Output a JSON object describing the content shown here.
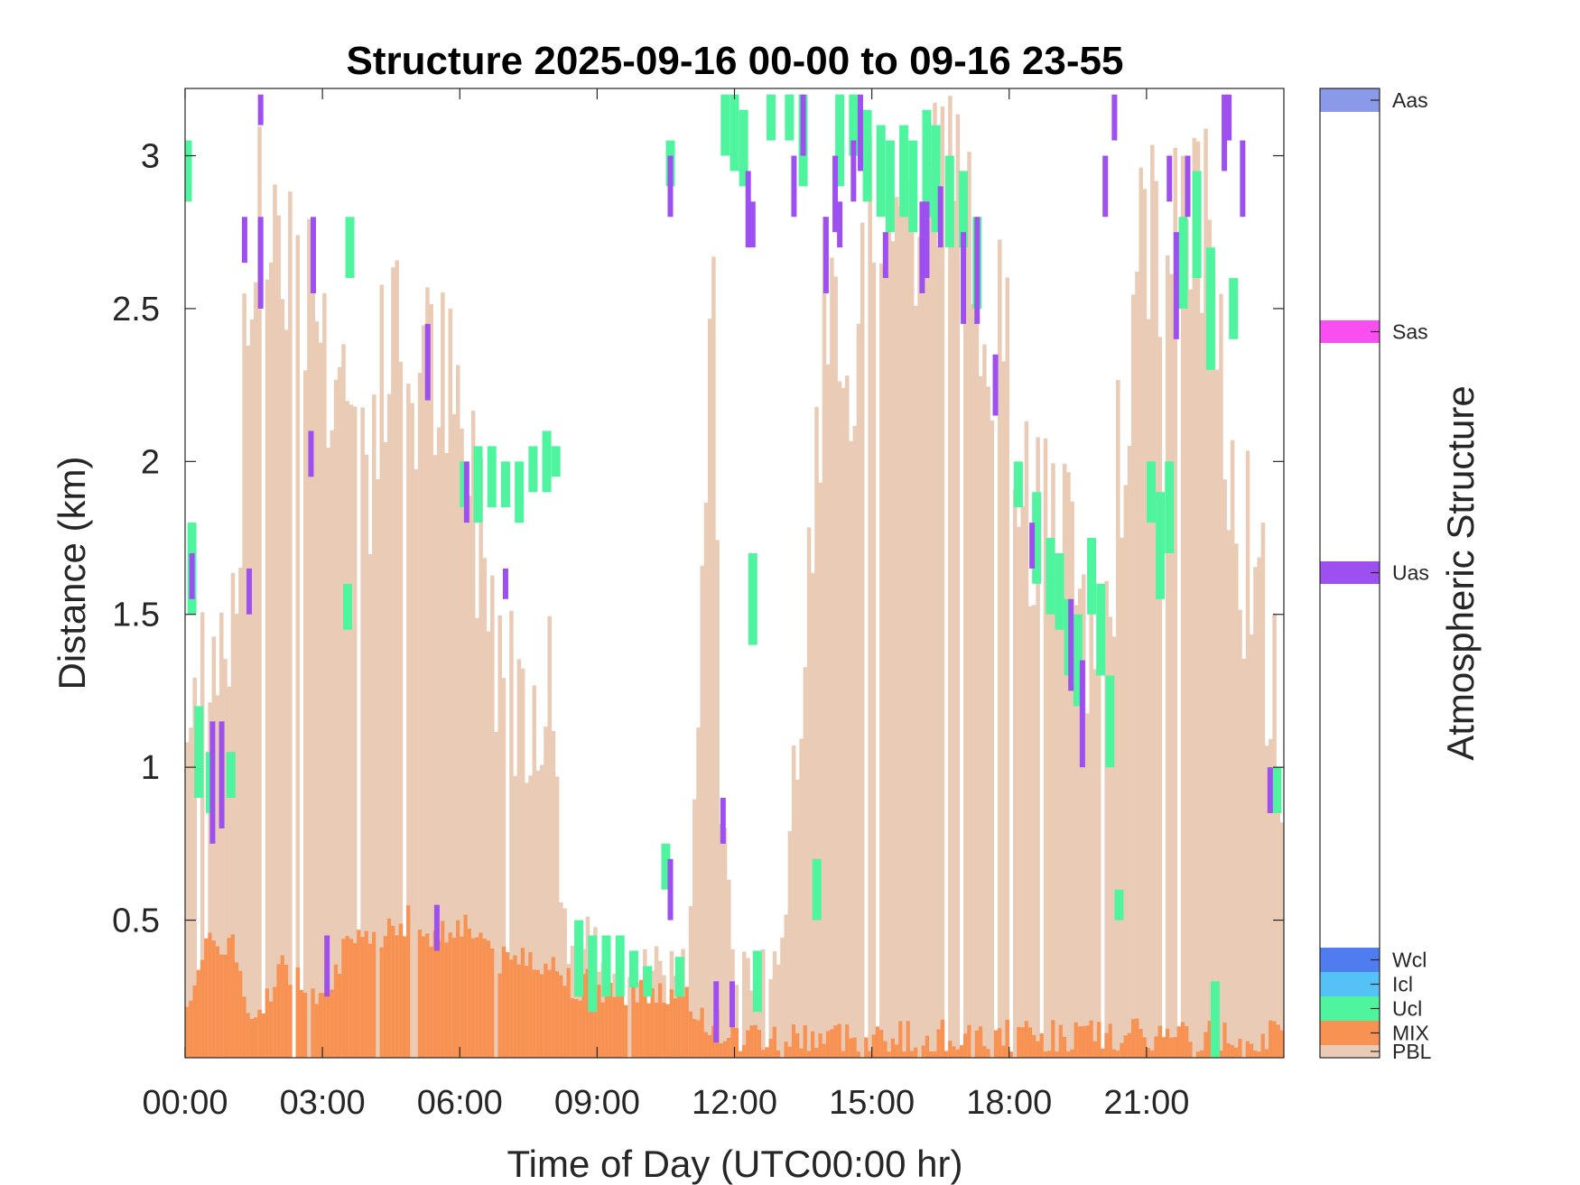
{
  "chart_data": {
    "type": "heatmap",
    "title": "Structure 2025-09-16 00-00 to 09-16 23-55",
    "xlabel": "Time of Day (UTC00:00 hr)",
    "ylabel": "Distance (km)",
    "colorbar_label": "Atmospheric Structure",
    "xlim": [
      0,
      24
    ],
    "ylim": [
      0.05,
      3.22
    ],
    "x_ticks": [
      0,
      3,
      6,
      9,
      12,
      15,
      18,
      21
    ],
    "x_tick_labels": [
      "00:00",
      "03:00",
      "06:00",
      "09:00",
      "12:00",
      "15:00",
      "18:00",
      "21:00"
    ],
    "y_ticks": [
      0.5,
      1,
      1.5,
      2,
      2.5,
      3
    ],
    "y_tick_labels": [
      "0.5",
      "1",
      "1.5",
      "2",
      "2.5",
      "3"
    ],
    "grid": false,
    "categories": [
      {
        "code": "PBL",
        "color": "#EACBB5"
      },
      {
        "code": "MIX",
        "color": "#F89253"
      },
      {
        "code": "Ucl",
        "color": "#4EF59E"
      },
      {
        "code": "Icl",
        "color": "#55C2F7"
      },
      {
        "code": "Wcl",
        "color": "#4F7DF0"
      },
      {
        "code": "Uas",
        "color": "#9D4FF0"
      },
      {
        "code": "Sas",
        "color": "#F94EF0"
      },
      {
        "code": "Aas",
        "color": "#8A9AE8"
      }
    ],
    "pbl_top": [
      [
        0.0,
        1.05
      ],
      [
        0.5,
        1.5
      ],
      [
        1.0,
        1.45
      ],
      [
        1.5,
        2.75
      ],
      [
        2.0,
        2.85
      ],
      [
        2.5,
        2.7
      ],
      [
        3.0,
        2.4
      ],
      [
        3.5,
        2.25
      ],
      [
        4.0,
        2.0
      ],
      [
        4.5,
        2.4
      ],
      [
        5.0,
        2.25
      ],
      [
        5.5,
        2.3
      ],
      [
        6.0,
        2.05
      ],
      [
        6.5,
        1.75
      ],
      [
        7.0,
        1.3
      ],
      [
        7.5,
        1.25
      ],
      [
        8.0,
        1.25
      ],
      [
        8.3,
        0.45
      ],
      [
        9.0,
        0.4
      ],
      [
        10.0,
        0.33
      ],
      [
        11.0,
        0.35
      ],
      [
        11.5,
        2.8
      ],
      [
        11.7,
        0.95
      ],
      [
        12.0,
        0.3
      ],
      [
        13.0,
        0.4
      ],
      [
        13.5,
        1.2
      ],
      [
        14.0,
        2.65
      ],
      [
        14.5,
        1.9
      ],
      [
        15.0,
        2.8
      ],
      [
        15.5,
        2.9
      ],
      [
        16.0,
        2.7
      ],
      [
        16.5,
        3.0
      ],
      [
        17.0,
        2.8
      ],
      [
        17.5,
        2.6
      ],
      [
        18.0,
        2.2
      ],
      [
        18.5,
        1.8
      ],
      [
        19.0,
        1.75
      ],
      [
        19.5,
        1.5
      ],
      [
        20.0,
        1.35
      ],
      [
        20.5,
        2.1
      ],
      [
        21.0,
        2.8
      ],
      [
        21.5,
        2.6
      ],
      [
        22.0,
        2.9
      ],
      [
        22.5,
        2.6
      ],
      [
        23.0,
        1.8
      ],
      [
        23.5,
        1.5
      ],
      [
        24.0,
        1.0
      ]
    ],
    "mix_top": [
      [
        0.0,
        0.25
      ],
      [
        0.5,
        0.4
      ],
      [
        1.0,
        0.45
      ],
      [
        1.5,
        0.12
      ],
      [
        2.0,
        0.35
      ],
      [
        2.5,
        0.3
      ],
      [
        3.0,
        0.28
      ],
      [
        3.5,
        0.4
      ],
      [
        4.0,
        0.42
      ],
      [
        4.5,
        0.5
      ],
      [
        5.0,
        0.5
      ],
      [
        5.5,
        0.45
      ],
      [
        6.0,
        0.5
      ],
      [
        6.5,
        0.45
      ],
      [
        7.0,
        0.35
      ],
      [
        7.5,
        0.4
      ],
      [
        8.0,
        0.35
      ],
      [
        8.5,
        0.3
      ],
      [
        9.0,
        0.28
      ],
      [
        10.0,
        0.28
      ],
      [
        11.0,
        0.22
      ],
      [
        12.0,
        0.12
      ],
      [
        13.0,
        0.12
      ],
      [
        24.0,
        0.12
      ]
    ],
    "series": [
      {
        "name": "Ucl",
        "segments": [
          [
            0.05,
            2.85,
            3.05
          ],
          [
            0.15,
            1.5,
            1.8
          ],
          [
            0.3,
            0.9,
            1.2
          ],
          [
            0.55,
            0.85,
            1.05
          ],
          [
            1.0,
            0.9,
            1.05
          ],
          [
            3.6,
            2.6,
            2.8
          ],
          [
            3.55,
            1.45,
            1.6
          ],
          [
            6.1,
            1.85,
            2.0
          ],
          [
            6.4,
            1.8,
            2.05
          ],
          [
            6.7,
            1.85,
            2.05
          ],
          [
            7.0,
            1.85,
            2.0
          ],
          [
            7.3,
            1.8,
            2.0
          ],
          [
            7.6,
            1.9,
            2.05
          ],
          [
            7.9,
            1.9,
            2.1
          ],
          [
            8.1,
            1.95,
            2.05
          ],
          [
            8.6,
            0.25,
            0.5
          ],
          [
            8.9,
            0.2,
            0.45
          ],
          [
            9.2,
            0.25,
            0.45
          ],
          [
            9.5,
            0.25,
            0.45
          ],
          [
            9.8,
            0.28,
            0.4
          ],
          [
            10.1,
            0.25,
            0.35
          ],
          [
            10.5,
            0.6,
            0.75
          ],
          [
            10.8,
            0.25,
            0.38
          ],
          [
            10.6,
            2.9,
            3.05
          ],
          [
            11.8,
            3.0,
            3.2
          ],
          [
            12.0,
            2.95,
            3.2
          ],
          [
            12.2,
            2.9,
            3.15
          ],
          [
            12.4,
            1.4,
            1.7
          ],
          [
            12.5,
            0.2,
            0.4
          ],
          [
            12.8,
            3.05,
            3.2
          ],
          [
            13.2,
            3.05,
            3.2
          ],
          [
            13.5,
            2.9,
            3.2
          ],
          [
            13.8,
            0.5,
            0.7
          ],
          [
            14.3,
            2.9,
            3.2
          ],
          [
            14.6,
            3.0,
            3.2
          ],
          [
            14.9,
            2.85,
            3.15
          ],
          [
            15.2,
            2.8,
            3.1
          ],
          [
            15.4,
            2.75,
            3.05
          ],
          [
            15.7,
            2.8,
            3.1
          ],
          [
            15.9,
            2.75,
            3.05
          ],
          [
            16.2,
            2.8,
            3.15
          ],
          [
            16.4,
            2.75,
            3.1
          ],
          [
            16.7,
            2.7,
            3.0
          ],
          [
            17.0,
            2.7,
            2.95
          ],
          [
            17.3,
            2.5,
            2.8
          ],
          [
            18.2,
            1.85,
            2.0
          ],
          [
            18.6,
            1.6,
            1.9
          ],
          [
            18.9,
            1.5,
            1.75
          ],
          [
            19.1,
            1.45,
            1.7
          ],
          [
            19.3,
            1.3,
            1.55
          ],
          [
            19.5,
            1.2,
            1.5
          ],
          [
            19.8,
            1.5,
            1.75
          ],
          [
            20.0,
            1.3,
            1.6
          ],
          [
            20.2,
            1.0,
            1.3
          ],
          [
            20.4,
            0.5,
            0.6
          ],
          [
            21.1,
            1.8,
            2.0
          ],
          [
            21.3,
            1.55,
            1.9
          ],
          [
            21.5,
            1.7,
            2.0
          ],
          [
            21.8,
            2.5,
            2.8
          ],
          [
            22.1,
            2.6,
            2.95
          ],
          [
            22.4,
            2.3,
            2.7
          ],
          [
            22.5,
            0.05,
            0.3
          ],
          [
            22.9,
            2.4,
            2.6
          ],
          [
            23.85,
            0.85,
            1.0
          ]
        ]
      },
      {
        "name": "Uas",
        "segments": [
          [
            0.15,
            1.55,
            1.7
          ],
          [
            0.6,
            0.75,
            1.15
          ],
          [
            0.8,
            0.8,
            1.15
          ],
          [
            1.3,
            2.65,
            2.8
          ],
          [
            1.4,
            1.5,
            1.65
          ],
          [
            1.65,
            2.5,
            2.8
          ],
          [
            1.65,
            3.1,
            3.2
          ],
          [
            2.75,
            1.95,
            2.1
          ],
          [
            2.8,
            2.55,
            2.8
          ],
          [
            3.1,
            0.25,
            0.45
          ],
          [
            5.3,
            2.2,
            2.45
          ],
          [
            5.5,
            0.4,
            0.55
          ],
          [
            6.15,
            1.8,
            2.0
          ],
          [
            7.0,
            1.55,
            1.65
          ],
          [
            10.6,
            0.5,
            0.7
          ],
          [
            10.6,
            2.8,
            3.0
          ],
          [
            11.6,
            0.1,
            0.3
          ],
          [
            11.75,
            0.75,
            0.9
          ],
          [
            11.95,
            0.15,
            0.3
          ],
          [
            12.3,
            2.7,
            2.95
          ],
          [
            12.4,
            2.7,
            2.85
          ],
          [
            13.3,
            2.8,
            3.0
          ],
          [
            13.5,
            3.0,
            3.2
          ],
          [
            14.0,
            2.55,
            2.8
          ],
          [
            14.2,
            2.75,
            3.0
          ],
          [
            14.3,
            2.7,
            2.85
          ],
          [
            14.6,
            2.85,
            3.05
          ],
          [
            14.75,
            2.95,
            3.2
          ],
          [
            15.3,
            2.6,
            2.75
          ],
          [
            16.1,
            2.55,
            2.85
          ],
          [
            16.2,
            2.6,
            2.85
          ],
          [
            16.5,
            2.7,
            2.9
          ],
          [
            17.0,
            2.45,
            2.75
          ],
          [
            17.3,
            2.45,
            2.8
          ],
          [
            17.7,
            2.15,
            2.35
          ],
          [
            18.5,
            1.65,
            1.8
          ],
          [
            19.35,
            1.25,
            1.55
          ],
          [
            19.6,
            1.0,
            1.35
          ],
          [
            20.1,
            2.8,
            3.0
          ],
          [
            20.3,
            3.05,
            3.2
          ],
          [
            21.5,
            2.85,
            3.0
          ],
          [
            21.65,
            2.4,
            2.75
          ],
          [
            21.9,
            2.8,
            3.0
          ],
          [
            22.7,
            2.95,
            3.2
          ],
          [
            22.8,
            3.05,
            3.2
          ],
          [
            23.1,
            2.8,
            3.05
          ],
          [
            23.7,
            0.85,
            1.0
          ]
        ]
      }
    ]
  }
}
